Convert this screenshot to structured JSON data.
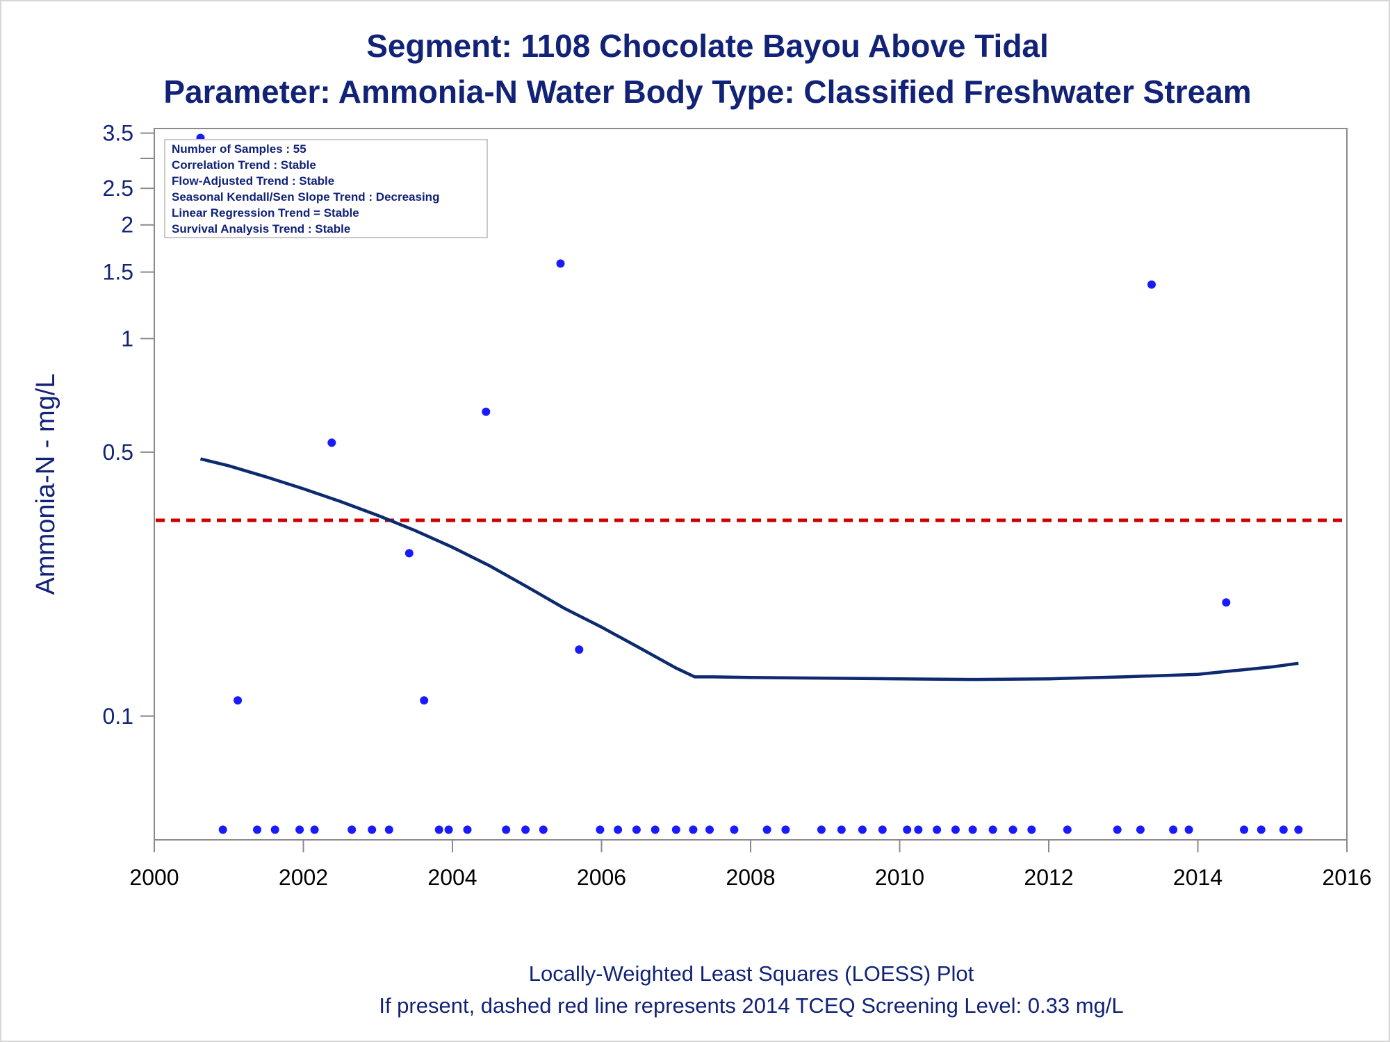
{
  "chart_data": {
    "type": "scatter",
    "title": "Segment: 1108  Chocolate Bayou Above Tidal",
    "subtitle": "Parameter: Ammonia-N   Water Body Type: Classified Freshwater Stream",
    "ylabel": "Ammonia-N - mg/L",
    "xlabel": "",
    "yscale": "log",
    "xlim": [
      2000,
      2016
    ],
    "ylim": [
      0.047,
      3.6
    ],
    "x_ticks": [
      "2000",
      "2002",
      "2004",
      "2006",
      "2008",
      "2010",
      "2012",
      "2014",
      "2016"
    ],
    "y_ticks": [
      {
        "value": 0.1,
        "label": "0.1"
      },
      {
        "value": 0.5,
        "label": "0.5"
      },
      {
        "value": 1,
        "label": "1"
      },
      {
        "value": 1.5,
        "label": "1.5"
      },
      {
        "value": 2,
        "label": "2"
      },
      {
        "value": 2.5,
        "label": "2.5"
      },
      {
        "value": 3,
        "label": ""
      },
      {
        "value": 3.5,
        "label": "3.5"
      }
    ],
    "grid": false,
    "colors": {
      "points": "#1a1aff",
      "loess": "#0d2a6e",
      "screening": "#cc0000",
      "text": "#112277"
    },
    "info_box": {
      "placement": "top-left",
      "lines": [
        "Number of Samples : 55",
        "Correlation Trend : Stable",
        "Flow-Adjusted Trend : Stable",
        "Seasonal Kendall/Sen Slope Trend : Decreasing",
        "Linear Regression Trend = Stable",
        "Survival Analysis Trend : Stable"
      ]
    },
    "screening_level": 0.33,
    "points": [
      [
        2000.62,
        3.4
      ],
      [
        2000.92,
        0.05
      ],
      [
        2001.12,
        0.11
      ],
      [
        2001.38,
        0.05
      ],
      [
        2001.62,
        0.05
      ],
      [
        2001.95,
        0.05
      ],
      [
        2002.15,
        0.05
      ],
      [
        2002.38,
        0.53
      ],
      [
        2002.65,
        0.05
      ],
      [
        2002.92,
        0.05
      ],
      [
        2003.15,
        0.05
      ],
      [
        2003.42,
        0.27
      ],
      [
        2003.62,
        0.11
      ],
      [
        2003.82,
        0.05
      ],
      [
        2003.95,
        0.05
      ],
      [
        2004.2,
        0.05
      ],
      [
        2004.45,
        0.64
      ],
      [
        2004.72,
        0.05
      ],
      [
        2004.98,
        0.05
      ],
      [
        2005.22,
        0.05
      ],
      [
        2005.45,
        1.58
      ],
      [
        2005.7,
        0.15
      ],
      [
        2005.98,
        0.05
      ],
      [
        2006.22,
        0.05
      ],
      [
        2006.47,
        0.05
      ],
      [
        2006.72,
        0.05
      ],
      [
        2007.0,
        0.05
      ],
      [
        2007.23,
        0.05
      ],
      [
        2007.45,
        0.05
      ],
      [
        2007.78,
        0.05
      ],
      [
        2008.22,
        0.05
      ],
      [
        2008.47,
        0.05
      ],
      [
        2008.95,
        0.05
      ],
      [
        2009.22,
        0.05
      ],
      [
        2009.5,
        0.05
      ],
      [
        2009.77,
        0.05
      ],
      [
        2010.1,
        0.05
      ],
      [
        2010.25,
        0.05
      ],
      [
        2010.5,
        0.05
      ],
      [
        2010.75,
        0.05
      ],
      [
        2010.98,
        0.05
      ],
      [
        2011.25,
        0.05
      ],
      [
        2011.52,
        0.05
      ],
      [
        2011.77,
        0.05
      ],
      [
        2012.25,
        0.05
      ],
      [
        2012.92,
        0.05
      ],
      [
        2013.23,
        0.05
      ],
      [
        2013.38,
        1.39
      ],
      [
        2013.67,
        0.05
      ],
      [
        2013.88,
        0.05
      ],
      [
        2014.38,
        0.2
      ],
      [
        2014.62,
        0.05
      ],
      [
        2014.85,
        0.05
      ],
      [
        2015.15,
        0.05
      ],
      [
        2015.35,
        0.05
      ]
    ],
    "loess": [
      [
        2000.62,
        0.48
      ],
      [
        2001.0,
        0.46
      ],
      [
        2001.5,
        0.43
      ],
      [
        2002.0,
        0.4
      ],
      [
        2002.5,
        0.37
      ],
      [
        2003.0,
        0.34
      ],
      [
        2003.5,
        0.31
      ],
      [
        2004.0,
        0.28
      ],
      [
        2004.5,
        0.25
      ],
      [
        2005.0,
        0.22
      ],
      [
        2005.5,
        0.193
      ],
      [
        2006.0,
        0.172
      ],
      [
        2006.5,
        0.152
      ],
      [
        2007.0,
        0.134
      ],
      [
        2007.25,
        0.127
      ],
      [
        2007.5,
        0.127
      ],
      [
        2008.0,
        0.1265
      ],
      [
        2009.0,
        0.126
      ],
      [
        2010.0,
        0.1255
      ],
      [
        2011.0,
        0.125
      ],
      [
        2012.0,
        0.1255
      ],
      [
        2013.0,
        0.127
      ],
      [
        2014.0,
        0.129
      ],
      [
        2014.5,
        0.132
      ],
      [
        2015.0,
        0.135
      ],
      [
        2015.35,
        0.138
      ]
    ]
  },
  "footer": {
    "line1": "Locally-Weighted Least Squares (LOESS) Plot",
    "line2": "If present, dashed red line represents 2014 TCEQ Screening Level: 0.33 mg/L"
  }
}
